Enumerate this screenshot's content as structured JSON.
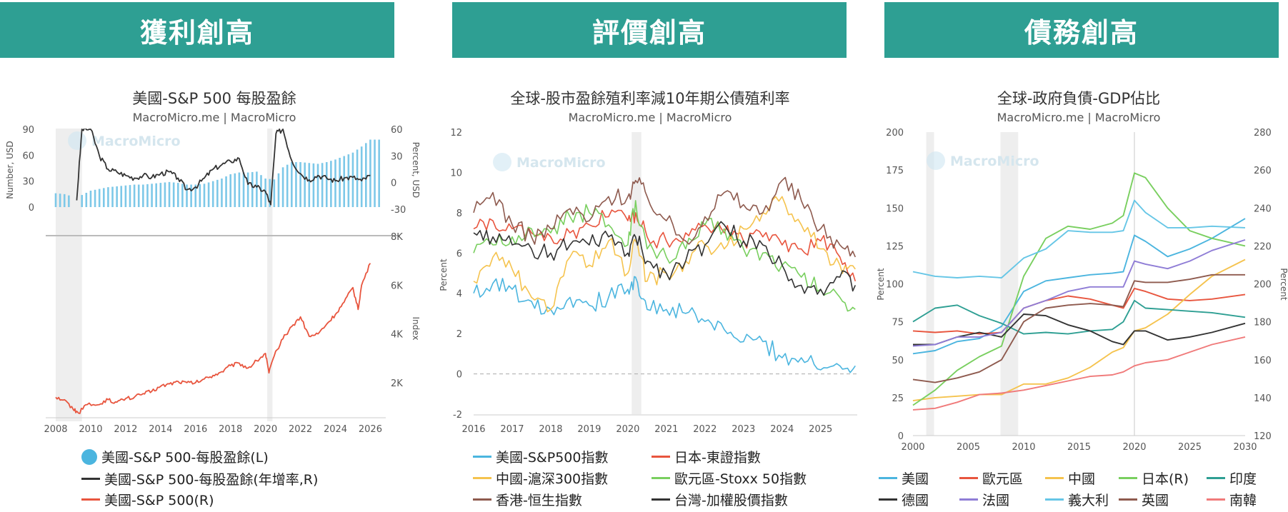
{
  "banners": [
    "獲利創高",
    "評價創高",
    "債務創高"
  ],
  "panels": [
    {
      "title": "美國-S&P 500 每股盈餘",
      "subtitle": "MacroMicro.me | MacroMicro",
      "watermark": "MacroMicro"
    },
    {
      "title": "全球-股市盈餘殖利率減10年期公債殖利率",
      "subtitle": "MacroMicro.me | MacroMicro",
      "watermark": "MacroMicro"
    },
    {
      "title": "全球-政府負債-GDP佔比",
      "subtitle": "MacroMicro.me | MacroMicro",
      "watermark": "MacroMicro"
    }
  ],
  "chart_data": [
    {
      "type": "bar+line",
      "title": "美國-S&P 500 每股盈餘",
      "top": {
        "y_left_label": "Number, USD",
        "y_left_ticks": [
          0,
          30,
          60,
          90
        ],
        "y_left_lim": [
          -15,
          90
        ],
        "y_right_label": "Percent, USD",
        "y_right_ticks": [
          -30,
          0,
          30,
          60
        ],
        "y_right_lim": [
          -40,
          60
        ],
        "eps_years": [
          2008,
          2008.5,
          2009,
          2009.5,
          2010,
          2010.5,
          2011,
          2011.5,
          2012,
          2012.5,
          2013,
          2013.5,
          2014,
          2014.5,
          2015,
          2015.5,
          2016,
          2016.5,
          2017,
          2017.5,
          2018,
          2018.5,
          2019,
          2019.5,
          2020,
          2020.5,
          2021,
          2021.5,
          2022,
          2022.5,
          2023,
          2023.5,
          2024,
          2024.5,
          2025,
          2025.5,
          2026
        ],
        "eps_values": [
          16,
          15,
          12,
          14,
          19,
          21,
          23,
          24,
          25,
          26,
          26,
          27,
          28,
          29,
          28,
          26,
          26,
          27,
          30,
          33,
          38,
          40,
          40,
          41,
          33,
          32,
          46,
          52,
          52,
          51,
          50,
          52,
          55,
          59,
          63,
          70,
          78
        ],
        "growth_years": [
          2009.2,
          2009.5,
          2010,
          2010.5,
          2011,
          2011.5,
          2012,
          2012.5,
          2013,
          2013.5,
          2014,
          2014.5,
          2015,
          2015.5,
          2016,
          2016.5,
          2017,
          2017.5,
          2018,
          2018.5,
          2019,
          2019.5,
          2020,
          2020.3,
          2020.6,
          2021,
          2021.5,
          2022,
          2022.5,
          2023,
          2023.5,
          2024,
          2024.5,
          2025,
          2025.5,
          2026
        ],
        "growth_values": [
          -20,
          60,
          60,
          30,
          15,
          12,
          8,
          5,
          8,
          6,
          10,
          12,
          5,
          -8,
          -5,
          5,
          15,
          20,
          24,
          27,
          -2,
          -5,
          -10,
          -25,
          55,
          60,
          25,
          10,
          3,
          8,
          5,
          2,
          5,
          6,
          2,
          8
        ]
      },
      "bottom": {
        "y_right_label": "Index",
        "y_right_ticks": [
          "2K",
          "4K",
          "6K",
          "8K"
        ],
        "y_lim": [
          400,
          8000
        ],
        "sp500_years": [
          2008,
          2008.5,
          2009,
          2009.3,
          2009.8,
          2010.5,
          2011,
          2011.5,
          2012,
          2012.5,
          2013,
          2013.5,
          2014,
          2014.5,
          2015,
          2015.5,
          2016,
          2016.5,
          2017,
          2017.5,
          2018,
          2018.5,
          2019,
          2019.5,
          2020,
          2020.2,
          2020.5,
          2021,
          2021.5,
          2022,
          2022.5,
          2023,
          2023.5,
          2024,
          2024.5,
          2025,
          2025.3,
          2025.5,
          2026
        ],
        "sp500_values": [
          1400,
          1300,
          900,
          750,
          1100,
          1100,
          1300,
          1200,
          1350,
          1400,
          1550,
          1650,
          1850,
          1950,
          2050,
          2000,
          2000,
          2150,
          2300,
          2450,
          2700,
          2800,
          2600,
          2900,
          3200,
          2400,
          3100,
          3800,
          4300,
          4700,
          3900,
          4000,
          4400,
          4800,
          5300,
          5900,
          5000,
          6000,
          6900
        ]
      },
      "x_ticks": [
        2008,
        2010,
        2012,
        2014,
        2016,
        2018,
        2020,
        2022,
        2024,
        2026
      ],
      "recessions": [
        [
          2008,
          2009.5
        ],
        [
          2020.1,
          2020.4
        ]
      ],
      "legend": [
        {
          "label": "美國-S&P 500-每股盈餘(L)",
          "color": "#4bb5df"
        },
        {
          "label": "美國-S&P 500-每股盈餘(年增率,R)",
          "color": "#333333"
        },
        {
          "label": "美國-S&P 500(R)",
          "color": "#e8553e"
        }
      ]
    },
    {
      "type": "line",
      "title": "全球-股市盈餘殖利率減10年期公債殖利率",
      "ylabel": "Percent",
      "ylim": [
        -2,
        12
      ],
      "y_ticks": [
        -2,
        0,
        2,
        4,
        6,
        8,
        10,
        12
      ],
      "x_ticks": [
        2016,
        2017,
        2018,
        2019,
        2020,
        2021,
        2022,
        2023,
        2024,
        2025
      ],
      "x_lim": [
        2016,
        2026
      ],
      "recession": [
        2020.1,
        2020.35
      ],
      "x": [
        2016,
        2016.5,
        2017,
        2017.5,
        2018,
        2018.5,
        2019,
        2019.5,
        2020,
        2020.2,
        2020.5,
        2021,
        2021.5,
        2022,
        2022.5,
        2023,
        2023.5,
        2024,
        2024.5,
        2025,
        2025.5,
        2025.9
      ],
      "series": [
        {
          "name": "美國-S&P500指數",
          "color": "#4bb5df",
          "values": [
            4.0,
            4.5,
            4.2,
            3.6,
            3.2,
            3.8,
            3.4,
            3.8,
            4.2,
            4.8,
            3.2,
            3.2,
            3.0,
            2.6,
            2.2,
            1.6,
            1.6,
            0.8,
            0.8,
            0.2,
            0.4,
            0.4
          ]
        },
        {
          "name": "日本-東證指數",
          "color": "#e8553e",
          "values": [
            7.2,
            7.6,
            7.2,
            7.0,
            6.8,
            7.0,
            7.4,
            7.8,
            7.6,
            8.0,
            6.8,
            6.6,
            7.0,
            7.4,
            7.0,
            6.6,
            6.8,
            6.4,
            6.2,
            6.6,
            5.8,
            4.6
          ]
        },
        {
          "name": "中國-滬深300指數",
          "color": "#f5c34e",
          "values": [
            4.6,
            5.8,
            5.2,
            3.8,
            3.2,
            5.8,
            5.4,
            6.6,
            5.0,
            6.6,
            4.6,
            5.0,
            5.6,
            6.4,
            6.2,
            7.2,
            8.0,
            8.8,
            7.4,
            6.2,
            5.4,
            5.2
          ]
        },
        {
          "name": "歐元區-Stoxx 50指數",
          "color": "#79cf5f",
          "values": [
            6.0,
            6.4,
            6.8,
            7.2,
            7.0,
            7.8,
            8.0,
            7.4,
            6.4,
            8.6,
            6.2,
            5.8,
            6.2,
            7.4,
            7.2,
            6.2,
            6.0,
            5.4,
            4.8,
            4.2,
            3.8,
            3.2
          ]
        },
        {
          "name": "香港-恒生指數",
          "color": "#8e5a4e",
          "values": [
            8.0,
            9.0,
            7.4,
            6.8,
            7.2,
            8.2,
            7.6,
            8.8,
            8.8,
            9.6,
            8.8,
            7.6,
            6.6,
            7.8,
            9.0,
            8.4,
            8.0,
            9.6,
            8.6,
            7.2,
            6.4,
            5.8
          ]
        },
        {
          "name": "台灣-加權股價指數",
          "color": "#333333",
          "values": [
            7.0,
            6.8,
            6.4,
            6.2,
            6.0,
            6.4,
            6.4,
            6.8,
            6.0,
            6.8,
            5.6,
            5.0,
            5.6,
            6.4,
            7.4,
            6.6,
            6.4,
            5.4,
            4.4,
            4.2,
            4.8,
            4.4
          ]
        }
      ],
      "legend": [
        {
          "label": "美國-S&P500指數",
          "color": "#4bb5df"
        },
        {
          "label": "日本-東證指數",
          "color": "#e8553e"
        },
        {
          "label": "中國-滬深300指數",
          "color": "#f5c34e"
        },
        {
          "label": "歐元區-Stoxx 50指數",
          "color": "#79cf5f"
        },
        {
          "label": "香港-恒生指數",
          "color": "#8e5a4e"
        },
        {
          "label": "台灣-加權股價指數",
          "color": "#333333"
        }
      ]
    },
    {
      "type": "line",
      "title": "全球-政府負債-GDP佔比",
      "ylabel": "Percent",
      "y2label": "Percent",
      "ylim": [
        0,
        200
      ],
      "y_ticks": [
        0,
        25,
        50,
        75,
        100,
        125,
        150,
        175,
        200
      ],
      "y2lim": [
        120,
        280
      ],
      "y2_ticks": [
        120,
        140,
        160,
        180,
        200,
        220,
        240,
        260,
        280
      ],
      "x_ticks": [
        2000,
        2005,
        2010,
        2015,
        2020,
        2025,
        2030
      ],
      "x_lim": [
        2000,
        2030
      ],
      "recessions": [
        [
          2001.2,
          2001.9
        ],
        [
          2007.9,
          2009.5
        ]
      ],
      "x": [
        2000,
        2002,
        2004,
        2006,
        2008,
        2010,
        2012,
        2014,
        2016,
        2018,
        2019,
        2020,
        2021,
        2023,
        2025,
        2027,
        2030
      ],
      "series": [
        {
          "name": "美國",
          "color": "#4bb5df",
          "values": [
            54,
            56,
            62,
            64,
            72,
            95,
            102,
            104,
            106,
            107,
            108,
            132,
            128,
            118,
            123,
            130,
            143
          ]
        },
        {
          "name": "歐元區",
          "color": "#e8553e",
          "values": [
            69,
            68,
            69,
            67,
            68,
            84,
            89,
            92,
            90,
            86,
            84,
            97,
            95,
            90,
            89,
            90,
            93
          ]
        },
        {
          "name": "中國",
          "color": "#f5c34e",
          "values": [
            23,
            25,
            26,
            27,
            27,
            34,
            34,
            38,
            45,
            55,
            58,
            69,
            71,
            80,
            93,
            105,
            116
          ]
        },
        {
          "name": "日本(R)",
          "color": "#79cf5f",
          "values": [
            20,
            30,
            43,
            52,
            59,
            105,
            130,
            138,
            136,
            140,
            145,
            173,
            170,
            150,
            135,
            130,
            125
          ]
        },
        {
          "name": "印度",
          "color": "#2e9f93",
          "values": [
            75,
            84,
            86,
            79,
            74,
            67,
            68,
            67,
            69,
            70,
            75,
            89,
            84,
            83,
            82,
            81,
            78
          ]
        },
        {
          "name": "德國",
          "color": "#333333",
          "values": [
            60,
            60,
            65,
            68,
            65,
            80,
            79,
            73,
            69,
            62,
            60,
            69,
            69,
            63,
            65,
            68,
            74
          ]
        },
        {
          "name": "法國",
          "color": "#8f7dd6",
          "values": [
            59,
            60,
            65,
            65,
            68,
            84,
            89,
            95,
            98,
            98,
            98,
            115,
            113,
            110,
            115,
            122,
            129
          ]
        },
        {
          "name": "義大利",
          "color": "#66c6e6",
          "values": [
            108,
            105,
            104,
            105,
            104,
            117,
            123,
            135,
            134,
            134,
            135,
            155,
            147,
            137,
            137,
            138,
            137
          ]
        },
        {
          "name": "英國",
          "color": "#8e5a4e",
          "values": [
            37,
            35,
            38,
            42,
            50,
            75,
            84,
            86,
            87,
            86,
            85,
            102,
            101,
            101,
            103,
            106,
            106
          ]
        },
        {
          "name": "南韓",
          "color": "#f07a7a",
          "values": [
            17,
            18,
            22,
            27,
            28,
            30,
            33,
            36,
            39,
            40,
            42,
            46,
            48,
            50,
            55,
            60,
            65
          ]
        }
      ],
      "legend": [
        {
          "label": "美國",
          "color": "#4bb5df"
        },
        {
          "label": "歐元區",
          "color": "#e8553e"
        },
        {
          "label": "中國",
          "color": "#f5c34e"
        },
        {
          "label": "日本(R)",
          "color": "#79cf5f"
        },
        {
          "label": "印度",
          "color": "#2e9f93"
        },
        {
          "label": "德國",
          "color": "#333333"
        },
        {
          "label": "法國",
          "color": "#8f7dd6"
        },
        {
          "label": "義大利",
          "color": "#66c6e6"
        },
        {
          "label": "英國",
          "color": "#8e5a4e"
        },
        {
          "label": "南韓",
          "color": "#f07a7a"
        }
      ]
    }
  ]
}
